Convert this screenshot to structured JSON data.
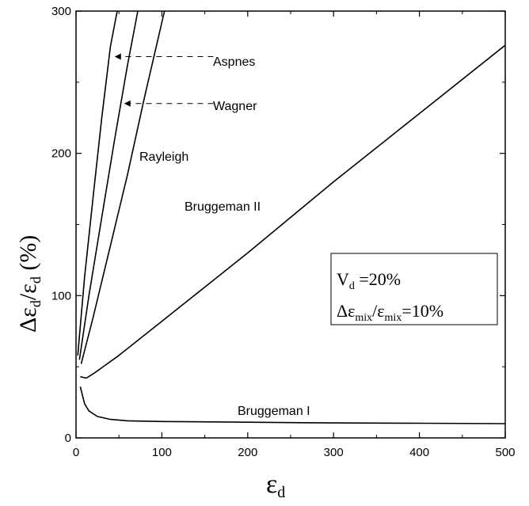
{
  "chart_data": {
    "type": "line",
    "xlim": [
      0,
      500
    ],
    "ylim": [
      0,
      300
    ],
    "x_ticks": [
      "0",
      "100",
      "200",
      "300",
      "400",
      "500"
    ],
    "y_ticks": [
      "0",
      "100",
      "200",
      "300"
    ],
    "xlabel": {
      "main": "ε",
      "sub": "d"
    },
    "ylabel": {
      "a": "Δε",
      "a_sub": "d",
      "b": "/ε",
      "b_sub": "d",
      "c": " (%)"
    },
    "grid": false,
    "series": [
      {
        "name": "Aspnes",
        "x": [
          2,
          10,
          20,
          30,
          40,
          48
        ],
        "y": [
          58,
          113,
          170,
          225,
          275,
          300
        ]
      },
      {
        "name": "Wagner",
        "x": [
          4,
          15,
          30,
          45,
          60,
          72
        ],
        "y": [
          55,
          100,
          155,
          210,
          262,
          300
        ]
      },
      {
        "name": "Rayleigh",
        "x": [
          6,
          20,
          40,
          60,
          80,
          103
        ],
        "y": [
          52,
          85,
          135,
          185,
          240,
          300
        ]
      },
      {
        "name": "Bruggeman II",
        "x": [
          5,
          12,
          20,
          50,
          100,
          200,
          300,
          400,
          500
        ],
        "y": [
          43,
          42,
          45,
          58,
          82,
          130,
          180,
          228,
          276
        ]
      },
      {
        "name": "Bruggeman I",
        "x": [
          5,
          10,
          15,
          25,
          40,
          60,
          100,
          200,
          300,
          400,
          500
        ],
        "y": [
          36,
          24,
          19,
          15,
          13,
          12,
          11.5,
          11,
          10.5,
          10.3,
          10
        ]
      }
    ],
    "labels": {
      "aspnes": "Aspnes",
      "wagner": "Wagner",
      "rayleigh": "Rayleigh",
      "bruggeman_2": "Bruggeman II",
      "bruggeman_1": "Bruggeman I"
    },
    "label_arrows": [
      {
        "name": "aspnes",
        "from": [
          160,
          268
        ],
        "to": [
          45,
          268
        ]
      },
      {
        "name": "wagner",
        "from": [
          160,
          235
        ],
        "to": [
          56,
          235
        ]
      }
    ],
    "info_box": {
      "line1": {
        "main": "V",
        "sub": "d",
        "rest": " =20%"
      },
      "line2": {
        "a": "Δε",
        "a_sub": "mix",
        "b": "/ε",
        "b_sub": "mix",
        "c": "=10%"
      }
    }
  }
}
